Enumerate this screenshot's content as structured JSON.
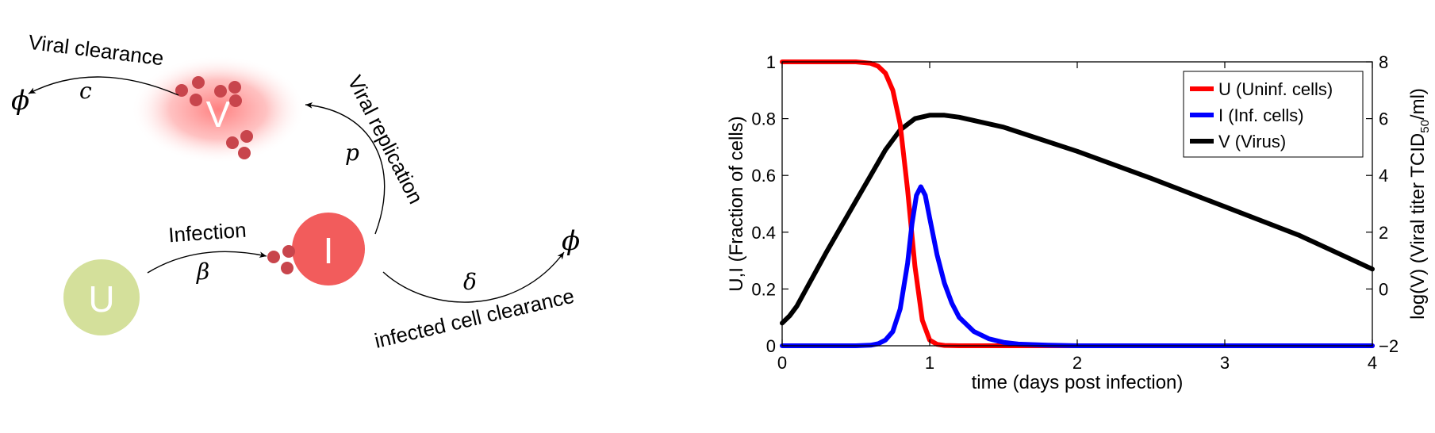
{
  "diagram": {
    "nodes": {
      "u": {
        "label": "U",
        "color": "#d4e09b"
      },
      "i": {
        "label": "I",
        "color": "#f25c5c"
      },
      "v": {
        "label": "V",
        "color": "#ff9d9d"
      }
    },
    "process_labels": {
      "viral_clearance": "Viral clearance",
      "viral_replication": "Viral replication",
      "infection": "Infection",
      "infected_cell_clearance": "infected cell clearance"
    },
    "parameters": {
      "c": "c",
      "p": "p",
      "beta": "β",
      "delta": "δ",
      "sink_v": "ϕ",
      "sink_i": "ϕ"
    },
    "virion_color": "#c8454c"
  },
  "chart_data": {
    "type": "line",
    "xlabel": "time (days post infection)",
    "ylabel_left": "U,I (Fraction of cells)",
    "ylabel_right_prefix": "log(V) (Viral titer TCID",
    "ylabel_right_sub": "50",
    "ylabel_right_suffix": "/ml)",
    "xlim": [
      0,
      4
    ],
    "ylim_left": [
      0,
      1
    ],
    "ylim_right": [
      -2,
      8
    ],
    "x_ticks": [
      "0",
      "1",
      "2",
      "3",
      "4"
    ],
    "y_left_ticks": [
      "0",
      "0.2",
      "0.4",
      "0.6",
      "0.8",
      "1"
    ],
    "y_right_ticks": [
      "−2",
      "0",
      "2",
      "4",
      "6",
      "8"
    ],
    "grid": false,
    "legend_position": "top-right",
    "series": [
      {
        "name": "U (Uninf. cells)",
        "color": "#ff0000",
        "axis": "left",
        "x": [
          0,
          0.3,
          0.5,
          0.6,
          0.65,
          0.7,
          0.75,
          0.8,
          0.85,
          0.9,
          0.95,
          1.0,
          1.05,
          1.1,
          1.2,
          1.5,
          2,
          3,
          4
        ],
        "y": [
          1,
          1,
          1,
          0.995,
          0.985,
          0.96,
          0.9,
          0.78,
          0.55,
          0.28,
          0.09,
          0.02,
          0.005,
          0.001,
          0,
          0,
          0,
          0,
          0
        ]
      },
      {
        "name": "I (Inf. cells)",
        "color": "#0000ff",
        "axis": "left",
        "x": [
          0,
          0.5,
          0.6,
          0.65,
          0.7,
          0.75,
          0.8,
          0.85,
          0.88,
          0.91,
          0.94,
          0.97,
          1.0,
          1.05,
          1.1,
          1.15,
          1.2,
          1.3,
          1.4,
          1.5,
          1.6,
          1.8,
          2,
          3,
          4
        ],
        "y": [
          0,
          0,
          0.002,
          0.007,
          0.02,
          0.05,
          0.13,
          0.29,
          0.43,
          0.53,
          0.56,
          0.53,
          0.45,
          0.32,
          0.22,
          0.15,
          0.1,
          0.05,
          0.025,
          0.012,
          0.006,
          0.002,
          0,
          0,
          0
        ]
      },
      {
        "name": "V (Virus)",
        "color": "#000000",
        "axis": "right",
        "x": [
          0,
          0.05,
          0.1,
          0.2,
          0.3,
          0.4,
          0.5,
          0.6,
          0.7,
          0.8,
          0.9,
          1.0,
          1.1,
          1.2,
          1.5,
          2,
          2.5,
          3,
          3.5,
          4
        ],
        "y": [
          -1.2,
          -0.95,
          -0.6,
          0.35,
          1.3,
          2.2,
          3.1,
          4.0,
          4.9,
          5.6,
          6.0,
          6.12,
          6.12,
          6.05,
          5.7,
          4.85,
          3.9,
          2.9,
          1.9,
          0.7
        ]
      }
    ]
  }
}
